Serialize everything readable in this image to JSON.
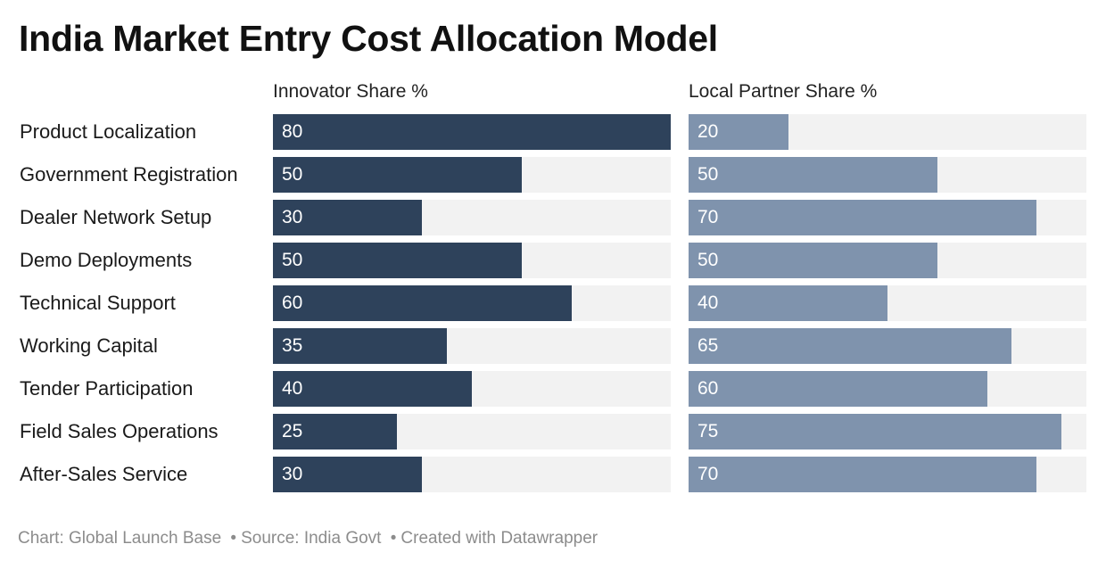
{
  "title": "India Market Entry Cost Allocation Model",
  "footer": {
    "chart": "Chart: Global Launch Base",
    "source": "Source: India Govt",
    "created": "Created with Datawrapper"
  },
  "colors": {
    "innovator": "#2e425b",
    "partner": "#7f93ad",
    "track": "#f2f2f2"
  },
  "chart_data": {
    "type": "bar",
    "orientation": "horizontal",
    "grid": false,
    "xlim": [
      0,
      80
    ],
    "categories": [
      "Product Localization",
      "Government Registration",
      "Dealer Network Setup",
      "Demo Deployments",
      "Technical Support",
      "Working Capital",
      "Tender Participation",
      "Field Sales Operations",
      "After-Sales Service"
    ],
    "series": [
      {
        "name": "Innovator Share %",
        "values": [
          80,
          50,
          30,
          50,
          60,
          35,
          40,
          25,
          30
        ]
      },
      {
        "name": "Local Partner Share %",
        "values": [
          20,
          50,
          70,
          50,
          40,
          65,
          60,
          75,
          70
        ]
      }
    ]
  }
}
